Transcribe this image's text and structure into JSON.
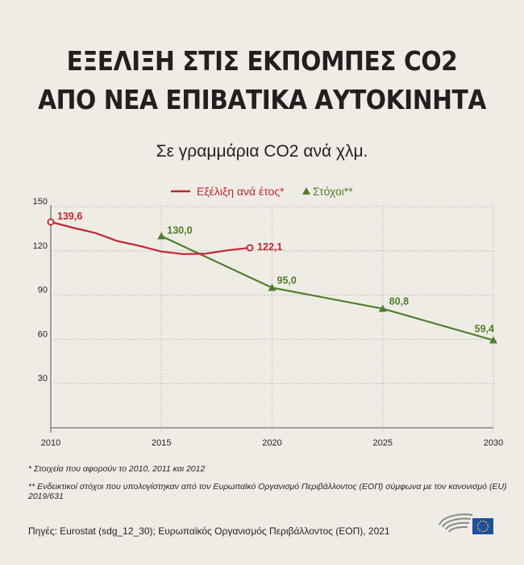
{
  "title_lines": [
    "ΕΞΕΛΙΞΗ ΣΤΙΣ ΕΚΠΟΜΠΕΣ CO2",
    "ΑΠΟ ΝΕΑ ΕΠΙΒΑΤΙΚΑ ΑΥΤΟΚΙΝΗΤΑ"
  ],
  "subtitle": "Σε γραμμάρια CO2 ανά χλμ.",
  "colors": {
    "actual": "#c0272d",
    "target": "#4e7f2c",
    "axis": "#555555",
    "background": "#efece6"
  },
  "chart_data": {
    "type": "line",
    "xlim": [
      2010,
      2030
    ],
    "ylim": [
      0,
      150
    ],
    "x_ticks": [
      2010,
      2015,
      2020,
      2025,
      2030
    ],
    "y_ticks": [
      30,
      60,
      90,
      120,
      150
    ],
    "legend_position": "top",
    "series": [
      {
        "name": "Εξέλιξη ανά έτος*",
        "marker": "circle",
        "points": [
          [
            2010,
            139.6
          ],
          [
            2011,
            135.7
          ],
          [
            2012,
            132.2
          ],
          [
            2013,
            126.7
          ],
          [
            2014,
            123.4
          ],
          [
            2015,
            119.5
          ],
          [
            2016,
            117.8
          ],
          [
            2017,
            118.1
          ],
          [
            2018,
            120.4
          ],
          [
            2019,
            122.1
          ]
        ],
        "labels": [
          {
            "x": 2010,
            "y": 139.6,
            "text": "139,6"
          },
          {
            "x": 2019,
            "y": 122.1,
            "text": "122,1"
          }
        ]
      },
      {
        "name": "Στόχοι**",
        "marker": "triangle",
        "points": [
          [
            2015,
            130.0
          ],
          [
            2020,
            95.0
          ],
          [
            2025,
            80.8
          ],
          [
            2030,
            59.4
          ]
        ],
        "labels": [
          {
            "x": 2015,
            "y": 130.0,
            "text": "130,0"
          },
          {
            "x": 2020,
            "y": 95.0,
            "text": "95,0"
          },
          {
            "x": 2025,
            "y": 80.8,
            "text": "80,8"
          },
          {
            "x": 2030,
            "y": 59.4,
            "text": "59,4"
          }
        ]
      }
    ]
  },
  "footnotes": [
    "* Στοιχεία που αφορούν το 2010, 2011 και 2012",
    "** Ενδεικτικοί στόχοι που υπολογίστηκαν από τον Ευρωπαϊκό Οργανισμό Περιβάλλοντος (ΕΟΠ) σύμφωνα με τον κανονισμό (EU) 2019/631"
  ],
  "source": "Πηγές: Eurostat (sdg_12_30); Ευρωπαϊκός Οργανισμός Περιβάλλοντος (ΕΟΠ), 2021"
}
